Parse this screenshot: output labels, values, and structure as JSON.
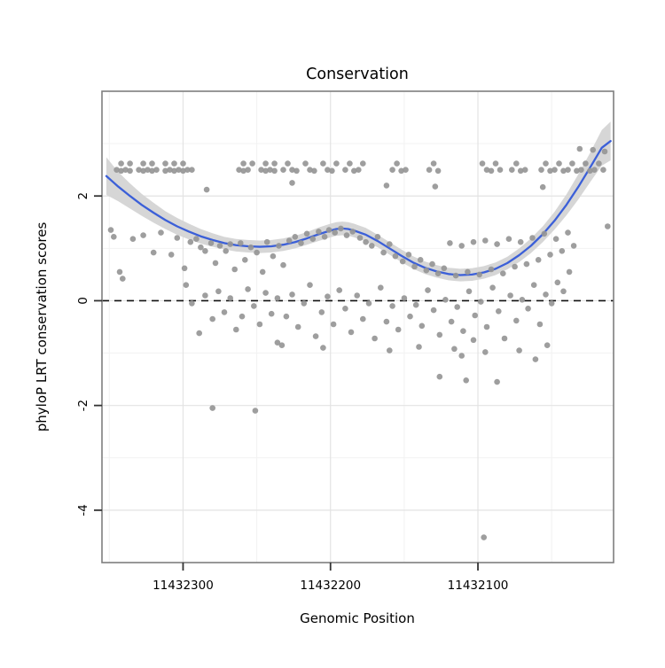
{
  "chart_data": {
    "type": "scatter",
    "title": "Conservation",
    "xlabel": "Genomic Position",
    "ylabel": "phyloP LRT conservation scores",
    "x_axis": {
      "ticks": [
        11432300,
        11432200,
        11432100
      ],
      "domain": [
        11432355,
        11432008
      ],
      "reversed": true
    },
    "y_axis": {
      "ticks": [
        2,
        0,
        -2,
        -4
      ],
      "domain": [
        -5,
        4
      ]
    },
    "reference_line_y": 0,
    "grid": true,
    "legend": "none",
    "colors": {
      "points": "#969696",
      "smooth_line": "#3B5FD8",
      "confidence_band": "#d6d6d6",
      "grid_major": "#e3e3e3",
      "grid_minor": "#f2f2f2",
      "panel_border": "#7f7f7f",
      "dashed_line": "#111111",
      "tick": "#333333",
      "background": "#ffffff"
    },
    "smooth": {
      "x": [
        11432352,
        11432344,
        11432336,
        11432328,
        11432320,
        11432312,
        11432304,
        11432296,
        11432288,
        11432280,
        11432272,
        11432264,
        11432256,
        11432248,
        11432240,
        11432232,
        11432224,
        11432216,
        11432208,
        11432200,
        11432196,
        11432192,
        11432188,
        11432184,
        11432176,
        11432168,
        11432160,
        11432152,
        11432144,
        11432136,
        11432128,
        11432120,
        11432112,
        11432104,
        11432096,
        11432088,
        11432080,
        11432072,
        11432064,
        11432056,
        11432048,
        11432040,
        11432032,
        11432024,
        11432016,
        11432010
      ],
      "y": [
        2.38,
        2.18,
        2.0,
        1.83,
        1.68,
        1.54,
        1.42,
        1.32,
        1.23,
        1.16,
        1.1,
        1.06,
        1.04,
        1.03,
        1.04,
        1.07,
        1.12,
        1.19,
        1.27,
        1.34,
        1.37,
        1.38,
        1.37,
        1.34,
        1.26,
        1.14,
        1.0,
        0.86,
        0.73,
        0.63,
        0.56,
        0.51,
        0.49,
        0.5,
        0.54,
        0.61,
        0.72,
        0.87,
        1.05,
        1.27,
        1.53,
        1.83,
        2.17,
        2.54,
        2.92,
        3.05
      ],
      "lo": [
        2.02,
        1.9,
        1.76,
        1.62,
        1.49,
        1.37,
        1.26,
        1.17,
        1.09,
        1.03,
        0.98,
        0.94,
        0.92,
        0.91,
        0.92,
        0.95,
        1.0,
        1.07,
        1.14,
        1.21,
        1.24,
        1.25,
        1.24,
        1.21,
        1.13,
        1.02,
        0.88,
        0.74,
        0.61,
        0.51,
        0.44,
        0.39,
        0.37,
        0.38,
        0.42,
        0.49,
        0.6,
        0.74,
        0.91,
        1.12,
        1.36,
        1.63,
        1.93,
        2.26,
        2.58,
        2.68
      ],
      "hi": [
        2.74,
        2.46,
        2.24,
        2.04,
        1.87,
        1.71,
        1.58,
        1.47,
        1.37,
        1.29,
        1.22,
        1.18,
        1.16,
        1.15,
        1.16,
        1.19,
        1.24,
        1.31,
        1.4,
        1.47,
        1.5,
        1.51,
        1.5,
        1.47,
        1.39,
        1.26,
        1.12,
        0.98,
        0.85,
        0.75,
        0.68,
        0.63,
        0.61,
        0.62,
        0.66,
        0.73,
        0.84,
        1.0,
        1.19,
        1.42,
        1.7,
        2.03,
        2.41,
        2.82,
        3.26,
        3.42
      ]
    },
    "points": [
      [
        11432345,
        2.5
      ],
      [
        11432342,
        2.62
      ],
      [
        11432342,
        2.48
      ],
      [
        11432339,
        2.5
      ],
      [
        11432336,
        2.62
      ],
      [
        11432336,
        2.48
      ],
      [
        11432330,
        2.5
      ],
      [
        11432327,
        2.62
      ],
      [
        11432327,
        2.48
      ],
      [
        11432324,
        2.5
      ],
      [
        11432321,
        2.62
      ],
      [
        11432321,
        2.48
      ],
      [
        11432318,
        2.5
      ],
      [
        11432312,
        2.62
      ],
      [
        11432312,
        2.48
      ],
      [
        11432309,
        2.5
      ],
      [
        11432306,
        2.62
      ],
      [
        11432306,
        2.48
      ],
      [
        11432303,
        2.5
      ],
      [
        11432300,
        2.62
      ],
      [
        11432300,
        2.48
      ],
      [
        11432297,
        2.5
      ],
      [
        11432294,
        2.5
      ],
      [
        11432262,
        2.5
      ],
      [
        11432259,
        2.62
      ],
      [
        11432259,
        2.48
      ],
      [
        11432256,
        2.5
      ],
      [
        11432253,
        2.62
      ],
      [
        11432247,
        2.5
      ],
      [
        11432244,
        2.62
      ],
      [
        11432244,
        2.48
      ],
      [
        11432241,
        2.5
      ],
      [
        11432238,
        2.62
      ],
      [
        11432238,
        2.48
      ],
      [
        11432232,
        2.5
      ],
      [
        11432229,
        2.62
      ],
      [
        11432226,
        2.5
      ],
      [
        11432223,
        2.48
      ],
      [
        11432217,
        2.62
      ],
      [
        11432214,
        2.5
      ],
      [
        11432211,
        2.48
      ],
      [
        11432205,
        2.62
      ],
      [
        11432202,
        2.5
      ],
      [
        11432199,
        2.48
      ],
      [
        11432196,
        2.62
      ],
      [
        11432190,
        2.5
      ],
      [
        11432187,
        2.62
      ],
      [
        11432184,
        2.48
      ],
      [
        11432181,
        2.5
      ],
      [
        11432178,
        2.62
      ],
      [
        11432158,
        2.5
      ],
      [
        11432155,
        2.62
      ],
      [
        11432152,
        2.48
      ],
      [
        11432149,
        2.5
      ],
      [
        11432133,
        2.5
      ],
      [
        11432130,
        2.62
      ],
      [
        11432127,
        2.48
      ],
      [
        11432097,
        2.62
      ],
      [
        11432094,
        2.5
      ],
      [
        11432091,
        2.48
      ],
      [
        11432088,
        2.62
      ],
      [
        11432085,
        2.5
      ],
      [
        11432077,
        2.5
      ],
      [
        11432074,
        2.62
      ],
      [
        11432071,
        2.48
      ],
      [
        11432068,
        2.5
      ],
      [
        11432057,
        2.5
      ],
      [
        11432054,
        2.62
      ],
      [
        11432051,
        2.48
      ],
      [
        11432048,
        2.5
      ],
      [
        11432045,
        2.62
      ],
      [
        11432042,
        2.48
      ],
      [
        11432039,
        2.5
      ],
      [
        11432036,
        2.62
      ],
      [
        11432033,
        2.48
      ],
      [
        11432030,
        2.5
      ],
      [
        11432027,
        2.62
      ],
      [
        11432024,
        2.48
      ],
      [
        11432021,
        2.5
      ],
      [
        11432018,
        2.62
      ],
      [
        11432015,
        2.5
      ],
      [
        11432031,
        2.9
      ],
      [
        11432022,
        2.88
      ],
      [
        11432014,
        2.85
      ],
      [
        11432284,
        2.12
      ],
      [
        11432226,
        2.25
      ],
      [
        11432162,
        2.2
      ],
      [
        11432129,
        2.18
      ],
      [
        11432056,
        2.17
      ],
      [
        11432349,
        1.35
      ],
      [
        11432347,
        1.22
      ],
      [
        11432343,
        0.55
      ],
      [
        11432341,
        0.42
      ],
      [
        11432334,
        1.18
      ],
      [
        11432327,
        1.25
      ],
      [
        11432320,
        0.92
      ],
      [
        11432315,
        1.3
      ],
      [
        11432308,
        0.88
      ],
      [
        11432304,
        1.2
      ],
      [
        11432299,
        0.62
      ],
      [
        11432295,
        1.12
      ],
      [
        11432291,
        1.18
      ],
      [
        11432288,
        1.02
      ],
      [
        11432285,
        0.95
      ],
      [
        11432281,
        1.1
      ],
      [
        11432278,
        0.72
      ],
      [
        11432275,
        1.05
      ],
      [
        11432271,
        0.95
      ],
      [
        11432268,
        1.08
      ],
      [
        11432265,
        0.6
      ],
      [
        11432261,
        1.1
      ],
      [
        11432258,
        0.78
      ],
      [
        11432254,
        1.02
      ],
      [
        11432250,
        0.92
      ],
      [
        11432246,
        0.55
      ],
      [
        11432243,
        1.12
      ],
      [
        11432239,
        0.85
      ],
      [
        11432235,
        1.05
      ],
      [
        11432232,
        0.68
      ],
      [
        11432228,
        1.15
      ],
      [
        11432224,
        1.22
      ],
      [
        11432220,
        1.1
      ],
      [
        11432216,
        1.28
      ],
      [
        11432212,
        1.18
      ],
      [
        11432208,
        1.32
      ],
      [
        11432204,
        1.22
      ],
      [
        11432201,
        1.35
      ],
      [
        11432197,
        1.3
      ],
      [
        11432193,
        1.38
      ],
      [
        11432189,
        1.25
      ],
      [
        11432185,
        1.32
      ],
      [
        11432180,
        1.2
      ],
      [
        11432176,
        1.12
      ],
      [
        11432172,
        1.05
      ],
      [
        11432168,
        1.22
      ],
      [
        11432164,
        0.92
      ],
      [
        11432160,
        1.08
      ],
      [
        11432156,
        0.85
      ],
      [
        11432151,
        0.75
      ],
      [
        11432147,
        0.88
      ],
      [
        11432143,
        0.65
      ],
      [
        11432139,
        0.78
      ],
      [
        11432135,
        0.58
      ],
      [
        11432131,
        0.7
      ],
      [
        11432127,
        0.52
      ],
      [
        11432123,
        0.62
      ],
      [
        11432119,
        1.1
      ],
      [
        11432115,
        0.48
      ],
      [
        11432111,
        1.05
      ],
      [
        11432107,
        0.55
      ],
      [
        11432103,
        1.12
      ],
      [
        11432099,
        0.5
      ],
      [
        11432095,
        1.15
      ],
      [
        11432091,
        0.6
      ],
      [
        11432087,
        1.08
      ],
      [
        11432083,
        0.52
      ],
      [
        11432079,
        1.18
      ],
      [
        11432075,
        0.65
      ],
      [
        11432071,
        1.12
      ],
      [
        11432067,
        0.7
      ],
      [
        11432063,
        1.2
      ],
      [
        11432059,
        0.78
      ],
      [
        11432055,
        1.28
      ],
      [
        11432051,
        0.88
      ],
      [
        11432047,
        1.18
      ],
      [
        11432043,
        0.95
      ],
      [
        11432039,
        1.3
      ],
      [
        11432035,
        1.05
      ],
      [
        11432012,
        1.42
      ],
      [
        11432298,
        0.3
      ],
      [
        11432294,
        -0.05
      ],
      [
        11432289,
        -0.62
      ],
      [
        11432285,
        0.1
      ],
      [
        11432280,
        -0.35
      ],
      [
        11432276,
        0.18
      ],
      [
        11432272,
        -0.22
      ],
      [
        11432268,
        0.05
      ],
      [
        11432264,
        -0.55
      ],
      [
        11432260,
        -0.3
      ],
      [
        11432256,
        0.22
      ],
      [
        11432252,
        -0.1
      ],
      [
        11432248,
        -0.45
      ],
      [
        11432244,
        0.15
      ],
      [
        11432240,
        -0.25
      ],
      [
        11432236,
        0.05
      ],
      [
        11432233,
        -0.85
      ],
      [
        11432230,
        -0.3
      ],
      [
        11432226,
        0.12
      ],
      [
        11432222,
        -0.5
      ],
      [
        11432218,
        -0.05
      ],
      [
        11432214,
        0.3
      ],
      [
        11432210,
        -0.68
      ],
      [
        11432206,
        -0.22
      ],
      [
        11432202,
        0.08
      ],
      [
        11432198,
        -0.45
      ],
      [
        11432194,
        0.2
      ],
      [
        11432190,
        -0.15
      ],
      [
        11432186,
        -0.6
      ],
      [
        11432182,
        0.1
      ],
      [
        11432178,
        -0.35
      ],
      [
        11432174,
        -0.05
      ],
      [
        11432170,
        -0.72
      ],
      [
        11432166,
        0.25
      ],
      [
        11432162,
        -0.4
      ],
      [
        11432158,
        -0.1
      ],
      [
        11432154,
        -0.55
      ],
      [
        11432150,
        0.05
      ],
      [
        11432146,
        -0.3
      ],
      [
        11432142,
        -0.08
      ],
      [
        11432138,
        -0.48
      ],
      [
        11432134,
        0.2
      ],
      [
        11432130,
        -0.18
      ],
      [
        11432126,
        -0.65
      ],
      [
        11432122,
        0.02
      ],
      [
        11432118,
        -0.4
      ],
      [
        11432114,
        -0.12
      ],
      [
        11432110,
        -0.58
      ],
      [
        11432106,
        0.18
      ],
      [
        11432102,
        -0.28
      ],
      [
        11432098,
        -0.02
      ],
      [
        11432094,
        -0.5
      ],
      [
        11432090,
        0.25
      ],
      [
        11432086,
        -0.2
      ],
      [
        11432082,
        -0.72
      ],
      [
        11432078,
        0.1
      ],
      [
        11432074,
        -0.38
      ],
      [
        11432070,
        0.02
      ],
      [
        11432066,
        -0.15
      ],
      [
        11432062,
        0.3
      ],
      [
        11432058,
        -0.45
      ],
      [
        11432054,
        0.12
      ],
      [
        11432050,
        -0.05
      ],
      [
        11432046,
        0.35
      ],
      [
        11432042,
        0.18
      ],
      [
        11432038,
        0.55
      ],
      [
        11432280,
        -2.05
      ],
      [
        11432251,
        -2.1
      ],
      [
        11432205,
        -0.9
      ],
      [
        11432236,
        -0.8
      ],
      [
        11432160,
        -0.95
      ],
      [
        11432140,
        -0.88
      ],
      [
        11432126,
        -1.45
      ],
      [
        11432116,
        -0.92
      ],
      [
        11432108,
        -1.52
      ],
      [
        11432103,
        -0.75
      ],
      [
        11432111,
        -1.05
      ],
      [
        11432095,
        -0.98
      ],
      [
        11432087,
        -1.55
      ],
      [
        11432072,
        -0.95
      ],
      [
        11432061,
        -1.12
      ],
      [
        11432053,
        -0.85
      ],
      [
        11432096,
        -4.52
      ]
    ]
  }
}
